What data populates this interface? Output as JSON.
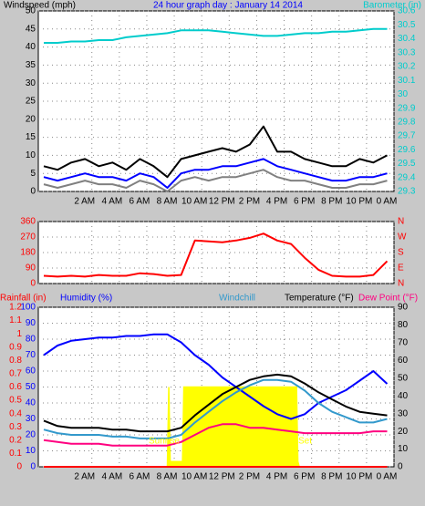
{
  "chart_data": [
    {
      "type": "line",
      "title": "24 hour graph day : January 14 2014",
      "ylabel": "Windspeed (mph)",
      "y2label": "Barometer (in)",
      "xlim": [
        -1.9,
        24
      ],
      "xticks": [
        {
          "value": 2,
          "label": "2 AM"
        },
        {
          "value": 4,
          "label": "4 AM"
        },
        {
          "value": 6,
          "label": "6 AM"
        },
        {
          "value": 8,
          "label": "8 AM"
        },
        {
          "value": 10,
          "label": "10 AM"
        },
        {
          "value": 12,
          "label": "12 PM"
        },
        {
          "value": 14,
          "label": "2 PM"
        },
        {
          "value": 16,
          "label": "4 PM"
        },
        {
          "value": 18,
          "label": "6 PM"
        },
        {
          "value": 20,
          "label": "8 PM"
        },
        {
          "value": 22,
          "label": "10 PM"
        },
        {
          "value": 24,
          "label": "0 AM"
        }
      ],
      "ylim": [
        0,
        50
      ],
      "yticks": [
        0,
        5,
        10,
        15,
        20,
        25,
        30,
        35,
        40,
        45,
        50
      ],
      "y2lim": [
        29.3,
        30.6
      ],
      "y2ticks": [
        30.6,
        30.5,
        30.4,
        30.3,
        30.2,
        30.1,
        30,
        29.9,
        29.8,
        29.7,
        29.6,
        29.5,
        29.4,
        29.3
      ],
      "grid": true,
      "x": [
        -1.5,
        -0.5,
        0.5,
        1.5,
        2.5,
        3.5,
        4.5,
        5.5,
        6.5,
        7.5,
        8.5,
        9.5,
        10.5,
        11.5,
        12.5,
        13.5,
        14.5,
        15.5,
        16.5,
        17.5,
        18.5,
        19.5,
        20.5,
        21.5,
        22.5,
        23.5
      ],
      "series": [
        {
          "color": "#000000",
          "values": [
            7,
            6,
            8,
            9,
            7,
            8,
            6,
            9,
            7,
            4,
            9,
            10,
            11,
            12,
            11,
            13,
            18,
            11,
            11,
            9,
            8,
            7,
            7,
            9,
            8,
            10
          ]
        },
        {
          "color": "#808080",
          "values": [
            2,
            1,
            2,
            3,
            2,
            2,
            1,
            3,
            2,
            0,
            3,
            4,
            3,
            4,
            4,
            5,
            6,
            4,
            3,
            3,
            2,
            1,
            1,
            2,
            2,
            3
          ]
        },
        {
          "color": "#0000ff",
          "values": [
            4,
            3,
            4,
            5,
            4,
            4,
            3,
            5,
            4,
            1,
            5,
            6,
            6,
            7,
            7,
            8,
            9,
            7,
            6,
            5,
            4,
            3,
            3,
            4,
            4,
            5
          ]
        },
        {
          "color": "#00cccc",
          "axis": "y2",
          "values": [
            30.37,
            30.37,
            30.38,
            30.38,
            30.39,
            30.39,
            30.41,
            30.42,
            30.43,
            30.44,
            30.46,
            30.46,
            30.46,
            30.45,
            30.44,
            30.43,
            30.42,
            30.42,
            30.43,
            30.44,
            30.44,
            30.45,
            30.45,
            30.46,
            30.47,
            30.47
          ]
        }
      ]
    },
    {
      "type": "line",
      "xlim": [
        -1.9,
        24
      ],
      "xticks": [
        2,
        4,
        6,
        8,
        10,
        12,
        14,
        16,
        18,
        20,
        22,
        24
      ],
      "ylim": [
        0,
        360
      ],
      "yticks": [
        0,
        90,
        180,
        270,
        360
      ],
      "y2lim": [
        0,
        360
      ],
      "y2ticks": [
        {
          "value": 0,
          "label": "N"
        },
        {
          "value": 90,
          "label": "E"
        },
        {
          "value": 180,
          "label": "S"
        },
        {
          "value": 270,
          "label": "W"
        },
        {
          "value": 360,
          "label": "N"
        }
      ],
      "grid": true,
      "x": [
        -1.5,
        -0.5,
        0.5,
        1.5,
        2.5,
        3.5,
        4.5,
        5.5,
        6.5,
        7.5,
        8.5,
        9.5,
        10.5,
        11.5,
        12.5,
        13.5,
        14.5,
        15.5,
        16.5,
        17.5,
        18.5,
        19.5,
        20.5,
        21.5,
        22.5,
        23.5
      ],
      "series": [
        {
          "color": "#ff0000",
          "values": [
            45,
            40,
            45,
            40,
            50,
            45,
            45,
            60,
            55,
            45,
            50,
            250,
            245,
            240,
            250,
            265,
            290,
            250,
            230,
            150,
            80,
            45,
            40,
            40,
            50,
            130
          ]
        }
      ]
    },
    {
      "type": "line",
      "annotations": [
        "Sunrise",
        "Set"
      ],
      "xlim": [
        -1.9,
        24
      ],
      "xticks": [
        {
          "value": 2,
          "label": "2 AM"
        },
        {
          "value": 4,
          "label": "4 AM"
        },
        {
          "value": 6,
          "label": "6 AM"
        },
        {
          "value": 8,
          "label": "8 AM"
        },
        {
          "value": 10,
          "label": "10 AM"
        },
        {
          "value": 12,
          "label": "12 PM"
        },
        {
          "value": 14,
          "label": "2 PM"
        },
        {
          "value": 16,
          "label": "4 PM"
        },
        {
          "value": 18,
          "label": "6 PM"
        },
        {
          "value": 20,
          "label": "8 PM"
        },
        {
          "value": 22,
          "label": "10 PM"
        },
        {
          "value": 24,
          "label": "0 AM"
        }
      ],
      "ylim": [
        0,
        100
      ],
      "yticks": [
        0,
        10,
        20,
        30,
        40,
        50,
        60,
        70,
        80,
        90,
        100
      ],
      "y2lim": [
        0,
        90
      ],
      "y2ticks": [
        0,
        10,
        20,
        30,
        40,
        50,
        60,
        70,
        80,
        90
      ],
      "y3lim": [
        0,
        1.2
      ],
      "y3ticks": [
        0,
        0.1,
        0.2,
        0.3,
        0.4,
        0.5,
        0.6,
        0.7,
        0.8,
        0.9,
        1,
        1.1,
        1.2
      ],
      "grid": true,
      "x": [
        -1.5,
        -0.5,
        0.5,
        1.5,
        2.5,
        3.5,
        4.5,
        5.5,
        6.5,
        7.5,
        8.5,
        9.5,
        10.5,
        11.5,
        12.5,
        13.5,
        14.5,
        15.5,
        16.5,
        17.5,
        18.5,
        19.5,
        20.5,
        21.5,
        22.5,
        23.5
      ],
      "series": [
        {
          "color": "#ffff00",
          "axis": "y2",
          "area": true,
          "x": [
            -1.5,
            7.5,
            7.6,
            7.7,
            8.6,
            8.7,
            16.9,
            17.0,
            17.1,
            23.5
          ],
          "values": [
            0,
            0,
            45,
            3,
            3,
            45,
            45,
            3,
            0,
            0
          ]
        },
        {
          "name": "Rainfall (in)",
          "color": "#ff0000",
          "axis": "y3",
          "values": [
            0,
            0,
            0,
            0,
            0,
            0,
            0,
            0,
            0,
            0,
            0,
            0,
            0,
            0,
            0,
            0,
            0,
            0,
            0,
            0,
            0,
            0,
            0,
            0,
            0,
            0
          ]
        },
        {
          "name": "Humidity (%)",
          "color": "#0000ff",
          "values": [
            70,
            76,
            79,
            80,
            81,
            81,
            82,
            82,
            83,
            83,
            78,
            70,
            64,
            56,
            50,
            44,
            38,
            33,
            30,
            33,
            40,
            44,
            48,
            54,
            60,
            52
          ]
        },
        {
          "name": "Windchill",
          "color": "#3399cc",
          "axis": "y2",
          "values": [
            21,
            19,
            18,
            18,
            18,
            17,
            17,
            16,
            16,
            16,
            18,
            25,
            31,
            37,
            42,
            46,
            49,
            49,
            48,
            43,
            36,
            31,
            28,
            25,
            25,
            27
          ]
        },
        {
          "name": "Temperature (°F)",
          "color": "#000000",
          "axis": "y2",
          "values": [
            26,
            23,
            22,
            22,
            22,
            21,
            21,
            20,
            20,
            20,
            22,
            29,
            35,
            41,
            45,
            49,
            51,
            52,
            51,
            47,
            42,
            38,
            34,
            31,
            30,
            29
          ]
        },
        {
          "name": "Dew Point (°F)",
          "color": "#ff0080",
          "axis": "y2",
          "values": [
            15,
            14,
            13,
            13,
            13,
            12,
            12,
            12,
            12,
            12,
            14,
            18,
            22,
            24,
            24,
            22,
            22,
            21,
            20,
            19,
            19,
            19,
            19,
            19,
            20,
            20
          ]
        }
      ]
    }
  ]
}
